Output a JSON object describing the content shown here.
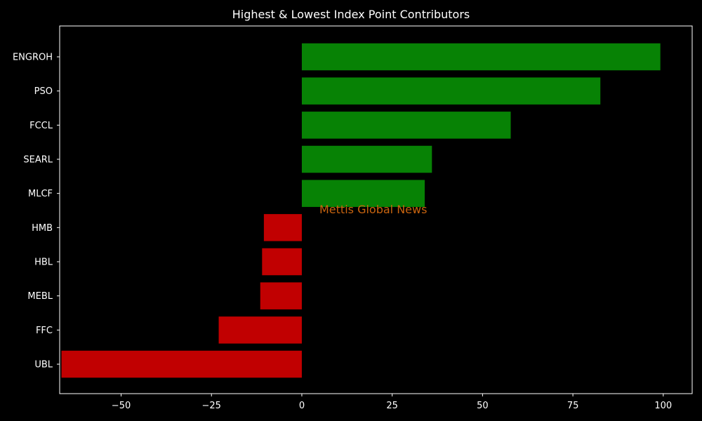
{
  "chart_data": {
    "type": "bar",
    "orientation": "horizontal",
    "title": "Highest & Lowest Index Point Contributors",
    "xlabel": "",
    "ylabel": "",
    "xlim": [
      -67,
      108
    ],
    "xticks": [
      -50,
      -25,
      0,
      25,
      50,
      75,
      100
    ],
    "xtick_labels": [
      "−50",
      "−25",
      "0",
      "25",
      "50",
      "75",
      "100"
    ],
    "categories": [
      "ENGROH",
      "PSO",
      "FCCL",
      "SEARL",
      "MLCF",
      "HMB",
      "HBL",
      "MEBL",
      "FFC",
      "UBL"
    ],
    "values": [
      99.2,
      82.6,
      57.8,
      36.0,
      34.0,
      -10.5,
      -11.0,
      -11.5,
      -23.0,
      -66.5
    ],
    "colors": {
      "positive": "#078205",
      "negative": "#c10001",
      "background": "#000000",
      "axis": "#ffffff",
      "watermark": "#c8640f"
    },
    "annotation": "Mettis Global News",
    "grid": false
  }
}
